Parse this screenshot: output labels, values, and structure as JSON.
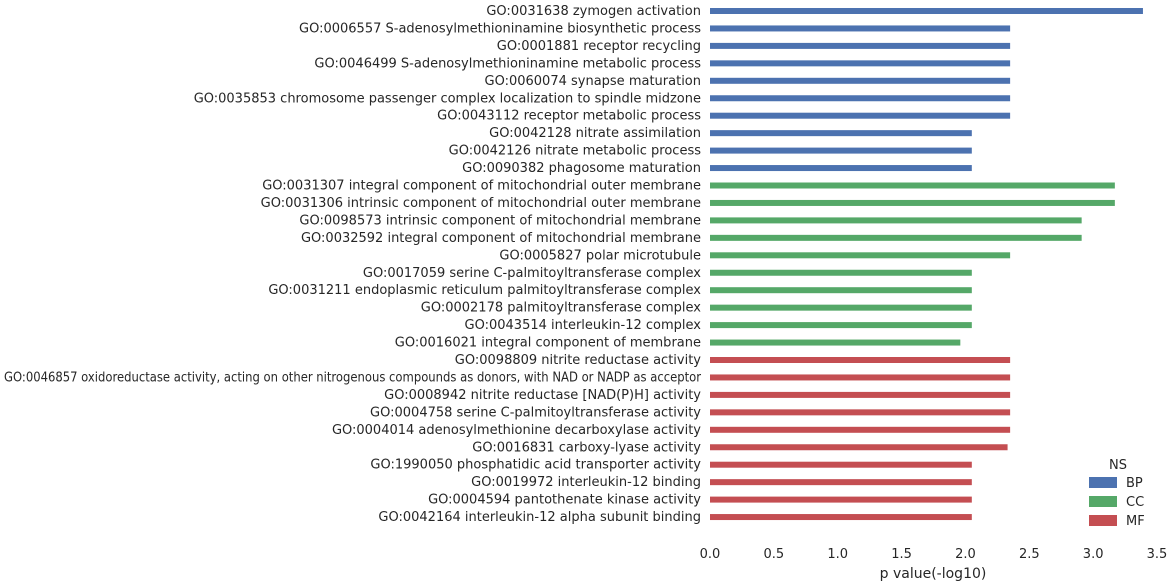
{
  "chart_data": {
    "type": "bar",
    "orientation": "horizontal",
    "xlabel": "p value(-log10)",
    "xlim": [
      0,
      3.5
    ],
    "xticks": [
      "0.0",
      "0.5",
      "1.0",
      "1.5",
      "2.0",
      "2.5",
      "3.0",
      "3.5"
    ],
    "grid": false,
    "legend": {
      "title": "NS",
      "placement": "bottom-right",
      "entries": [
        {
          "name": "BP",
          "color": "#4c72b0"
        },
        {
          "name": "CC",
          "color": "#55a868"
        },
        {
          "name": "MF",
          "color": "#c44e52"
        }
      ]
    },
    "categories": [
      {
        "label": "GO:0031638 zymogen activation",
        "value": 3.39,
        "ns": "BP"
      },
      {
        "label": "GO:0006557 S-adenosylmethioninamine biosynthetic process",
        "value": 2.35,
        "ns": "BP"
      },
      {
        "label": "GO:0001881 receptor recycling",
        "value": 2.35,
        "ns": "BP"
      },
      {
        "label": "GO:0046499 S-adenosylmethioninamine metabolic process",
        "value": 2.35,
        "ns": "BP"
      },
      {
        "label": "GO:0060074 synapse maturation",
        "value": 2.35,
        "ns": "BP"
      },
      {
        "label": "GO:0035853 chromosome passenger complex localization to spindle midzone",
        "value": 2.35,
        "ns": "BP"
      },
      {
        "label": "GO:0043112 receptor metabolic process",
        "value": 2.35,
        "ns": "BP"
      },
      {
        "label": "GO:0042128 nitrate assimilation",
        "value": 2.05,
        "ns": "BP"
      },
      {
        "label": "GO:0042126 nitrate metabolic process",
        "value": 2.05,
        "ns": "BP"
      },
      {
        "label": "GO:0090382 phagosome maturation",
        "value": 2.05,
        "ns": "BP"
      },
      {
        "label": "GO:0031307 integral component of mitochondrial outer membrane",
        "value": 3.17,
        "ns": "CC"
      },
      {
        "label": "GO:0031306 intrinsic component of mitochondrial outer membrane",
        "value": 3.17,
        "ns": "CC"
      },
      {
        "label": "GO:0098573 intrinsic component of mitochondrial membrane",
        "value": 2.91,
        "ns": "CC"
      },
      {
        "label": "GO:0032592 integral component of mitochondrial membrane",
        "value": 2.91,
        "ns": "CC"
      },
      {
        "label": "GO:0005827 polar microtubule",
        "value": 2.35,
        "ns": "CC"
      },
      {
        "label": "GO:0017059 serine C-palmitoyltransferase complex",
        "value": 2.05,
        "ns": "CC"
      },
      {
        "label": "GO:0031211 endoplasmic reticulum palmitoyltransferase complex",
        "value": 2.05,
        "ns": "CC"
      },
      {
        "label": "GO:0002178 palmitoyltransferase complex",
        "value": 2.05,
        "ns": "CC"
      },
      {
        "label": "GO:0043514 interleukin-12 complex",
        "value": 2.05,
        "ns": "CC"
      },
      {
        "label": "GO:0016021 integral component of membrane",
        "value": 1.96,
        "ns": "CC"
      },
      {
        "label": "GO:0098809 nitrite reductase activity",
        "value": 2.35,
        "ns": "MF"
      },
      {
        "label": "GO:0046857 oxidoreductase activity, acting on other nitrogenous compounds as donors, with NAD or NADP as acceptor",
        "value": 2.35,
        "ns": "MF"
      },
      {
        "label": "GO:0008942 nitrite reductase [NAD(P)H] activity",
        "value": 2.35,
        "ns": "MF"
      },
      {
        "label": "GO:0004758 serine C-palmitoyltransferase activity",
        "value": 2.35,
        "ns": "MF"
      },
      {
        "label": "GO:0004014 adenosylmethionine decarboxylase activity",
        "value": 2.35,
        "ns": "MF"
      },
      {
        "label": "GO:0016831 carboxy-lyase activity",
        "value": 2.33,
        "ns": "MF"
      },
      {
        "label": "GO:1990050 phosphatidic acid transporter activity",
        "value": 2.05,
        "ns": "MF"
      },
      {
        "label": "GO:0019972 interleukin-12 binding",
        "value": 2.05,
        "ns": "MF"
      },
      {
        "label": "GO:0004594 pantothenate kinase activity",
        "value": 2.05,
        "ns": "MF"
      },
      {
        "label": "GO:0042164 interleukin-12 alpha subunit binding",
        "value": 2.05,
        "ns": "MF"
      }
    ]
  }
}
